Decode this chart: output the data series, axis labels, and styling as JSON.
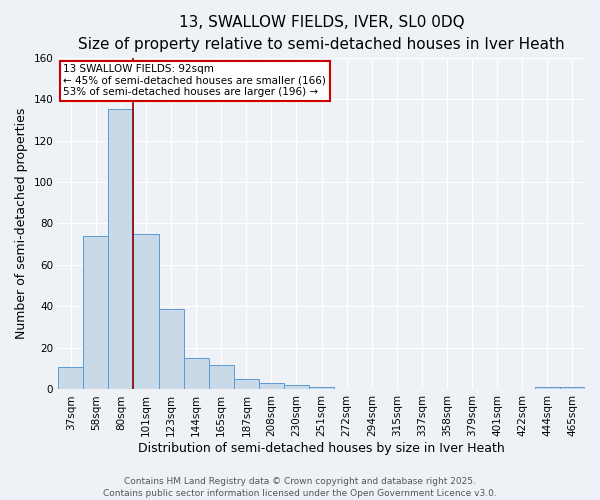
{
  "title": "13, SWALLOW FIELDS, IVER, SL0 0DQ",
  "subtitle": "Size of property relative to semi-detached houses in Iver Heath",
  "xlabel": "Distribution of semi-detached houses by size in Iver Heath",
  "ylabel": "Number of semi-detached properties",
  "categories": [
    "37sqm",
    "58sqm",
    "80sqm",
    "101sqm",
    "123sqm",
    "144sqm",
    "165sqm",
    "187sqm",
    "208sqm",
    "230sqm",
    "251sqm",
    "272sqm",
    "294sqm",
    "315sqm",
    "337sqm",
    "358sqm",
    "379sqm",
    "401sqm",
    "422sqm",
    "444sqm",
    "465sqm"
  ],
  "values": [
    11,
    74,
    135,
    75,
    39,
    15,
    12,
    5,
    3,
    2,
    1,
    0,
    0,
    0,
    0,
    0,
    0,
    0,
    0,
    1,
    1
  ],
  "bar_color": "#c9d9e8",
  "bar_edge_color": "#5b9bd5",
  "vline_x_index": 2,
  "vline_color": "#8b0000",
  "annotation_text": "13 SWALLOW FIELDS: 92sqm\n← 45% of semi-detached houses are smaller (166)\n53% of semi-detached houses are larger (196) →",
  "annotation_box_color": "#ffffff",
  "annotation_box_edge": "#cc0000",
  "ylim": [
    0,
    160
  ],
  "yticks": [
    0,
    20,
    40,
    60,
    80,
    100,
    120,
    140,
    160
  ],
  "footer_line1": "Contains HM Land Registry data © Crown copyright and database right 2025.",
  "footer_line2": "Contains public sector information licensed under the Open Government Licence v3.0.",
  "bg_color": "#eef2f7",
  "grid_color": "#ffffff",
  "title_fontsize": 11,
  "subtitle_fontsize": 9,
  "axis_label_fontsize": 9,
  "tick_fontsize": 7.5,
  "annotation_fontsize": 7.5,
  "footer_fontsize": 6.5
}
